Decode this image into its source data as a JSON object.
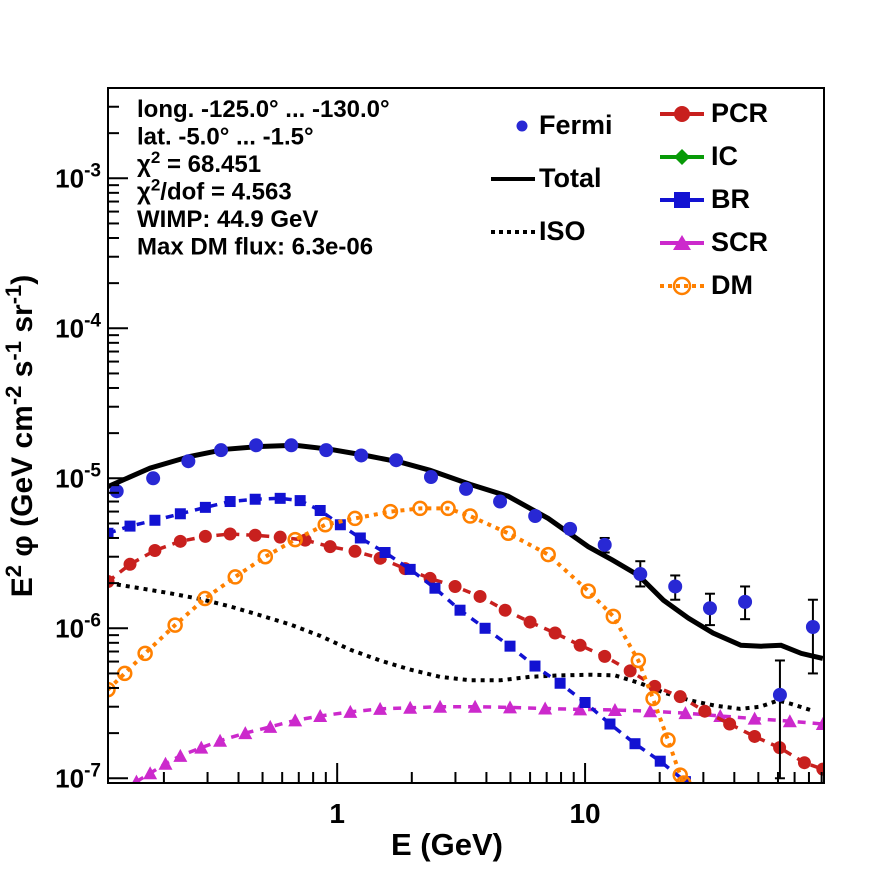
{
  "chart_data": {
    "type": "line",
    "title": "",
    "xlabel": "E (GeV)",
    "ylabel": "E^2 phi (GeV cm^-2 s^-1 sr^-1)",
    "ylabel_segments": [
      {
        "t": "E"
      },
      {
        "sup": "2"
      },
      {
        "t": " φ (GeV cm"
      },
      {
        "sup": "-2"
      },
      {
        "t": " s"
      },
      {
        "sup": "-1"
      },
      {
        "t": " sr"
      },
      {
        "sup": "-1"
      },
      {
        "t": ")"
      }
    ],
    "xscale": "log",
    "yscale": "log",
    "xlim": [
      0.119,
      92.0
    ],
    "ylim": [
      9.3e-08,
      0.004
    ],
    "xticks_labeled": [
      1,
      10
    ],
    "ytick_exponents": [
      -7,
      -6,
      -5,
      -4,
      -3
    ],
    "grid": false,
    "annotations": [
      [
        {
          "t": "long. -125.0° ... -130.0°"
        }
      ],
      [
        {
          "t": "lat. -5.0° ... -1.5°"
        }
      ],
      [
        {
          "t": "χ"
        },
        {
          "sup": "2"
        },
        {
          "t": " = 68.451"
        }
      ],
      [
        {
          "t": "χ"
        },
        {
          "sup": "2"
        },
        {
          "t": "/dof = 4.563"
        }
      ],
      [
        {
          "t": "WIMP: 44.9 GeV"
        }
      ],
      [
        {
          "t": "Max DM flux: 6.3e-06"
        }
      ]
    ],
    "legend_left": {
      "items": [
        {
          "label": "Fermi",
          "series": "Fermi"
        },
        {
          "label": "Total",
          "series": "Total"
        },
        {
          "label": "ISO",
          "series": "ISO"
        }
      ]
    },
    "legend_right": {
      "items": [
        {
          "label": "PCR",
          "series": "PCR"
        },
        {
          "label": "IC",
          "series": "IC"
        },
        {
          "label": "BR",
          "series": "BR"
        },
        {
          "label": "SCR",
          "series": "SCR"
        },
        {
          "label": "DM",
          "series": "DM"
        }
      ]
    },
    "series": [
      {
        "name": "ISO",
        "style": "line",
        "dash": "dotted",
        "color": "#000000",
        "width": 4,
        "marker": "none",
        "points": [
          [
            0.119,
            2e-06
          ],
          [
            0.16,
            1.85e-06
          ],
          [
            0.212,
            1.71e-06
          ],
          [
            0.283,
            1.56e-06
          ],
          [
            0.37,
            1.4e-06
          ],
          [
            0.489,
            1.22e-06
          ],
          [
            0.647,
            1.06e-06
          ],
          [
            0.854,
            8.9e-07
          ],
          [
            1.13,
            7.2e-07
          ],
          [
            1.49,
            6.1e-07
          ],
          [
            1.97,
            5.3e-07
          ],
          [
            2.6,
            4.75e-07
          ],
          [
            3.44,
            4.5e-07
          ],
          [
            4.54,
            4.5e-07
          ],
          [
            6.0,
            4.75e-07
          ],
          [
            7.9,
            4.85e-07
          ],
          [
            10.5,
            4.9e-07
          ],
          [
            13.2,
            4.85e-07
          ],
          [
            16.7,
            4.3e-07
          ],
          [
            21.0,
            3.7e-07
          ],
          [
            26.6,
            3.3e-07
          ],
          [
            33.4,
            3.05e-07
          ],
          [
            42.2,
            2.9e-07
          ],
          [
            50.9,
            3e-07
          ],
          [
            60.0,
            3.3e-07
          ],
          [
            67.0,
            3.15e-07
          ],
          [
            81.1,
            2.85e-07
          ]
        ]
      },
      {
        "name": "SCR",
        "style": "line-markers",
        "dash": "dashed",
        "color": "#cc29cc",
        "width": 3.5,
        "marker": "triangle",
        "points": [
          [
            0.155,
            9.5e-08
          ],
          [
            0.176,
            1.08e-07
          ],
          [
            0.203,
            1.25e-07
          ],
          [
            0.233,
            1.41e-07
          ],
          [
            0.283,
            1.6e-07
          ],
          [
            0.337,
            1.78e-07
          ],
          [
            0.426,
            2e-07
          ],
          [
            0.537,
            2.2e-07
          ],
          [
            0.677,
            2.43e-07
          ],
          [
            0.854,
            2.6e-07
          ],
          [
            1.13,
            2.77e-07
          ],
          [
            1.49,
            2.9e-07
          ],
          [
            1.97,
            2.95e-07
          ],
          [
            2.6,
            3e-07
          ],
          [
            3.6,
            3e-07
          ],
          [
            4.98,
            2.97e-07
          ],
          [
            6.9,
            2.92e-07
          ],
          [
            9.55,
            2.88e-07
          ],
          [
            13.2,
            2.85e-07
          ],
          [
            18.3,
            2.8e-07
          ],
          [
            25.4,
            2.72e-07
          ],
          [
            35.1,
            2.6e-07
          ],
          [
            48.3,
            2.5e-07
          ],
          [
            67.0,
            2.4e-07
          ],
          [
            91.0,
            2.3e-07
          ]
        ]
      },
      {
        "name": "PCR",
        "style": "line-markers",
        "dash": "dashed",
        "color": "#c8201e",
        "width": 3.5,
        "marker": "circle",
        "points": [
          [
            0.119,
            2.05e-06
          ],
          [
            0.146,
            2.67e-06
          ],
          [
            0.184,
            3.3e-06
          ],
          [
            0.233,
            3.8e-06
          ],
          [
            0.294,
            4.1e-06
          ],
          [
            0.37,
            4.25e-06
          ],
          [
            0.467,
            4.17e-06
          ],
          [
            0.589,
            4.05e-06
          ],
          [
            0.743,
            3.87e-06
          ],
          [
            0.937,
            3.5e-06
          ],
          [
            1.18,
            3.26e-06
          ],
          [
            1.49,
            2.93e-06
          ],
          [
            1.88,
            2.5e-06
          ],
          [
            2.37,
            2.15e-06
          ],
          [
            2.99,
            1.9e-06
          ],
          [
            3.77,
            1.63e-06
          ],
          [
            4.76,
            1.32e-06
          ],
          [
            6.0,
            1.1e-06
          ],
          [
            7.57,
            9.3e-07
          ],
          [
            9.55,
            7.7e-07
          ],
          [
            12.0,
            6.5e-07
          ],
          [
            15.2,
            5.2e-07
          ],
          [
            19.1,
            4.1e-07
          ],
          [
            24.2,
            3.5e-07
          ],
          [
            30.4,
            2.8e-07
          ],
          [
            38.3,
            2.3e-07
          ],
          [
            48.3,
            1.9e-07
          ],
          [
            60.9,
            1.6e-07
          ],
          [
            76.7,
            1.27e-07
          ],
          [
            91.0,
            1.15e-07
          ]
        ]
      },
      {
        "name": "BR",
        "style": "line-markers",
        "dash": "dashed",
        "color": "#1212d2",
        "width": 3.5,
        "marker": "square",
        "points": [
          [
            0.119,
            4.3e-06
          ],
          [
            0.146,
            4.8e-06
          ],
          [
            0.184,
            5.25e-06
          ],
          [
            0.233,
            5.8e-06
          ],
          [
            0.294,
            6.4e-06
          ],
          [
            0.37,
            7e-06
          ],
          [
            0.467,
            7.25e-06
          ],
          [
            0.589,
            7.35e-06
          ],
          [
            0.709,
            7.1e-06
          ],
          [
            0.854,
            6.1e-06
          ],
          [
            1.03,
            4.9e-06
          ],
          [
            1.24,
            4e-06
          ],
          [
            1.56,
            3.2e-06
          ],
          [
            1.97,
            2.47e-06
          ],
          [
            2.48,
            1.85e-06
          ],
          [
            3.13,
            1.32e-06
          ],
          [
            3.95,
            1e-06
          ],
          [
            4.98,
            7.6e-07
          ],
          [
            6.28,
            5.6e-07
          ],
          [
            7.93,
            4.3e-07
          ],
          [
            10.0,
            3.2e-07
          ],
          [
            12.6,
            2.3e-07
          ],
          [
            15.9,
            1.7e-07
          ],
          [
            20.1,
            1.3e-07
          ],
          [
            25.4,
            9.5e-08
          ]
        ]
      },
      {
        "name": "DM",
        "style": "line-markers",
        "dash": "dotted",
        "color": "#ff8000",
        "width": 4,
        "marker": "circle-open",
        "points": [
          [
            0.119,
            3.9e-07
          ],
          [
            0.139,
            5e-07
          ],
          [
            0.168,
            6.8e-07
          ],
          [
            0.222,
            1.05e-06
          ],
          [
            0.293,
            1.58e-06
          ],
          [
            0.388,
            2.2e-06
          ],
          [
            0.513,
            3e-06
          ],
          [
            0.677,
            3.9e-06
          ],
          [
            0.895,
            4.9e-06
          ],
          [
            1.18,
            5.4e-06
          ],
          [
            1.64,
            6e-06
          ],
          [
            2.16,
            6.3e-06
          ],
          [
            2.8,
            6.3e-06
          ],
          [
            3.44,
            5.6e-06
          ],
          [
            4.9,
            4.3e-06
          ],
          [
            7.1,
            3.1e-06
          ],
          [
            10.3,
            1.77e-06
          ],
          [
            13.0,
            1.2e-06
          ],
          [
            16.4,
            6.1e-07
          ],
          [
            18.8,
            3.4e-07
          ],
          [
            21.6,
            1.8e-07
          ],
          [
            24.2,
            1.05e-07
          ],
          [
            25.0,
            9.3e-08
          ]
        ]
      },
      {
        "name": "IC",
        "style": "line-markers",
        "dash": "dashed",
        "color": "#089a08",
        "width": 3.5,
        "marker": "diamond",
        "points": [],
        "note": "below plotted flux range"
      },
      {
        "name": "Total",
        "style": "line",
        "dash": "solid",
        "color": "#000000",
        "width": 5,
        "marker": "none",
        "points": [
          [
            0.119,
            8.8e-06
          ],
          [
            0.176,
            1.17e-05
          ],
          [
            0.255,
            1.4e-05
          ],
          [
            0.353,
            1.56e-05
          ],
          [
            0.489,
            1.63e-05
          ],
          [
            0.677,
            1.66e-05
          ],
          [
            0.937,
            1.56e-05
          ],
          [
            1.3,
            1.42e-05
          ],
          [
            1.8,
            1.28e-05
          ],
          [
            2.37,
            1.13e-05
          ],
          [
            3.44,
            9.1e-06
          ],
          [
            4.89,
            7.6e-06
          ],
          [
            7.1,
            5.4e-06
          ],
          [
            10.3,
            3.5e-06
          ],
          [
            12.9,
            2.85e-06
          ],
          [
            16.4,
            2.26e-06
          ],
          [
            20.7,
            1.54e-06
          ],
          [
            26.1,
            1.17e-06
          ],
          [
            32.8,
            9.3e-07
          ],
          [
            42.5,
            7.7e-07
          ],
          [
            51.3,
            7.6e-07
          ],
          [
            61.7,
            7.7e-07
          ],
          [
            74.5,
            6.8e-07
          ],
          [
            91.0,
            6.3e-07
          ]
        ]
      },
      {
        "name": "Fermi",
        "style": "points",
        "dash": "none",
        "color": "#2828d4",
        "width": 0,
        "marker": "circle",
        "marker_size": 7,
        "points": [
          [
            0.129,
            8.2e-06,
            7.8e-06,
            8.6e-06
          ],
          [
            0.181,
            1e-05,
            9.6e-06,
            1.05e-05
          ],
          [
            0.251,
            1.3e-05,
            1.25e-05,
            1.36e-05
          ],
          [
            0.34,
            1.54e-05,
            1.48e-05,
            1.6e-05
          ],
          [
            0.471,
            1.66e-05,
            1.6e-05,
            1.72e-05
          ],
          [
            0.653,
            1.66e-05,
            1.6e-05,
            1.72e-05
          ],
          [
            0.903,
            1.54e-05,
            1.48e-05,
            1.6e-05
          ],
          [
            1.25,
            1.42e-05,
            1.37e-05,
            1.48e-05
          ],
          [
            1.73,
            1.32e-05,
            1.27e-05,
            1.37e-05
          ],
          [
            2.39,
            1.02e-05,
            9.7e-06,
            1.07e-05
          ],
          [
            3.31,
            8.5e-06,
            8.1e-06,
            9e-06
          ],
          [
            4.54,
            7e-06,
            6.6e-06,
            7.4e-06
          ],
          [
            6.29,
            5.6e-06,
            5.3e-06,
            6e-06
          ],
          [
            8.7,
            4.6e-06,
            4.3e-06,
            4.9e-06
          ],
          [
            12.0,
            3.6e-06,
            3.2e-06,
            4e-06
          ],
          [
            16.7,
            2.3e-06,
            1.9e-06,
            2.8e-06
          ],
          [
            23.1,
            1.9e-06,
            1.55e-06,
            2.25e-06
          ],
          [
            31.9,
            1.36e-06,
            1.05e-06,
            1.7e-06
          ],
          [
            44.2,
            1.5e-06,
            1.15e-06,
            1.9e-06
          ],
          [
            61.1,
            3.6e-07,
            1e-07,
            6.1e-07
          ],
          [
            83.0,
            1.02e-06,
            5e-07,
            1.55e-06
          ]
        ]
      }
    ]
  }
}
